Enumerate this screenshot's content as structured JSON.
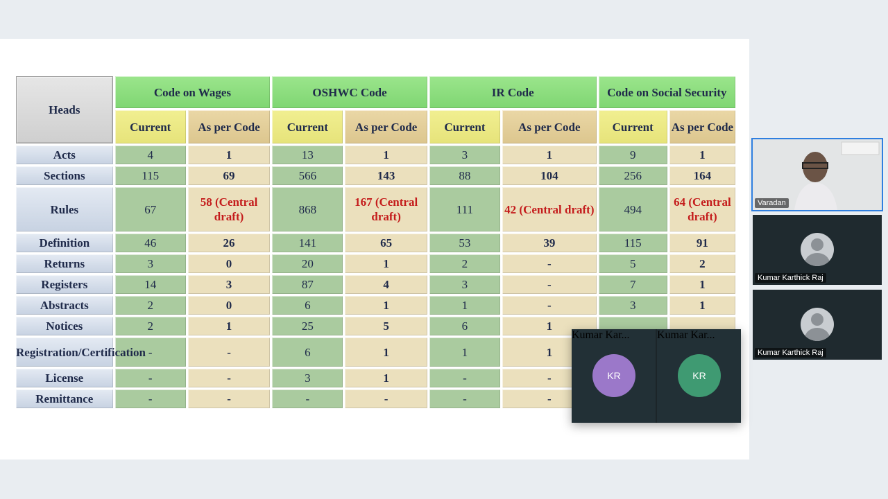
{
  "table": {
    "heads_label": "Heads",
    "groups": [
      {
        "title": "Code on Wages",
        "current": "Current",
        "as_per_code": "As per Code"
      },
      {
        "title": "OSHWC Code",
        "current": "Current",
        "as_per_code": "As per Code"
      },
      {
        "title": "IR Code",
        "current": "Current",
        "as_per_code": "As per Code"
      },
      {
        "title": "Code on Social Security",
        "current": "Current",
        "as_per_code": "As per Code"
      }
    ],
    "rows": [
      {
        "head": "Acts",
        "cells": [
          "4",
          "1",
          "13",
          "1",
          "3",
          "1",
          "9",
          "1"
        ]
      },
      {
        "head": "Sections",
        "cells": [
          "115",
          "69",
          "566",
          "143",
          "88",
          "104",
          "256",
          "164"
        ]
      },
      {
        "head": "Rules",
        "cells": [
          "67",
          "58 (Central draft)",
          "868",
          "167 (Central draft)",
          "111",
          "42 (Central draft)",
          "494",
          "64 (Central draft)"
        ]
      },
      {
        "head": "Definition",
        "cells": [
          "46",
          "26",
          "141",
          "65",
          "53",
          "39",
          "115",
          "91"
        ]
      },
      {
        "head": "Returns",
        "cells": [
          "3",
          "0",
          "20",
          "1",
          "2",
          "-",
          "5",
          "2"
        ]
      },
      {
        "head": "Registers",
        "cells": [
          "14",
          "3",
          "87",
          "4",
          "3",
          "-",
          "7",
          "1"
        ]
      },
      {
        "head": "Abstracts",
        "cells": [
          "2",
          "0",
          "6",
          "1",
          "1",
          "-",
          "3",
          "1"
        ]
      },
      {
        "head": "Notices",
        "cells": [
          "2",
          "1",
          "25",
          "5",
          "6",
          "1",
          "",
          ""
        ]
      },
      {
        "head": "Registration/Certification",
        "cells": [
          "-",
          "-",
          "6",
          "1",
          "1",
          "1",
          "",
          ""
        ]
      },
      {
        "head": "License",
        "cells": [
          "-",
          "-",
          "3",
          "1",
          "-",
          "-",
          "",
          ""
        ]
      },
      {
        "head": "Remittance",
        "cells": [
          "-",
          "-",
          "-",
          "-",
          "-",
          "-",
          "",
          ""
        ]
      }
    ],
    "red_color": "#c41c1c"
  },
  "participants": {
    "speaker": {
      "name": "Varadan"
    },
    "gallery": [
      {
        "name": "Kumar Karthick Raj"
      },
      {
        "name": "Kumar Karthick Raj"
      }
    ],
    "floating": [
      {
        "initials": "KR",
        "name": "Kumar Kar...",
        "color": "#9b78c9"
      },
      {
        "initials": "KR",
        "name": "Kumar Kar...",
        "color": "#3f9a72"
      }
    ]
  }
}
